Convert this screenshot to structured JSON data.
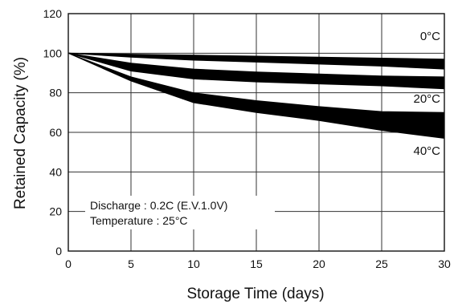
{
  "chart_data": {
    "type": "area",
    "xlabel": "Storage Time (days)",
    "ylabel": "Retained Capacity (%)",
    "xlim": [
      0,
      30
    ],
    "ylim": [
      0,
      120
    ],
    "xticks": [
      0,
      5,
      10,
      15,
      20,
      25,
      30
    ],
    "yticks": [
      0,
      20,
      40,
      60,
      80,
      100,
      120
    ],
    "grid": true,
    "series": [
      {
        "name": "0°C",
        "x": [
          0,
          5,
          10,
          15,
          20,
          25,
          30
        ],
        "upper": [
          100,
          99.5,
          99,
          98.5,
          98,
          97.5,
          97
        ],
        "lower": [
          100,
          98,
          96.5,
          95.5,
          94.5,
          93.5,
          92
        ]
      },
      {
        "name": "20°C",
        "x": [
          0,
          5,
          10,
          15,
          20,
          25,
          30
        ],
        "upper": [
          100,
          95,
          92,
          90.5,
          89.5,
          88.5,
          88
        ],
        "lower": [
          100,
          91,
          87,
          85.5,
          84.5,
          83.5,
          82
        ]
      },
      {
        "name": "40°C",
        "x": [
          0,
          5,
          10,
          15,
          20,
          25,
          30
        ],
        "upper": [
          100,
          88,
          80,
          76,
          73,
          70.5,
          70
        ],
        "lower": [
          100,
          86,
          75,
          70,
          66,
          61,
          57
        ]
      }
    ],
    "annotations": [
      "Discharge : 0.2C (E.V.1.0V)",
      "Temperature : 25°C"
    ]
  }
}
